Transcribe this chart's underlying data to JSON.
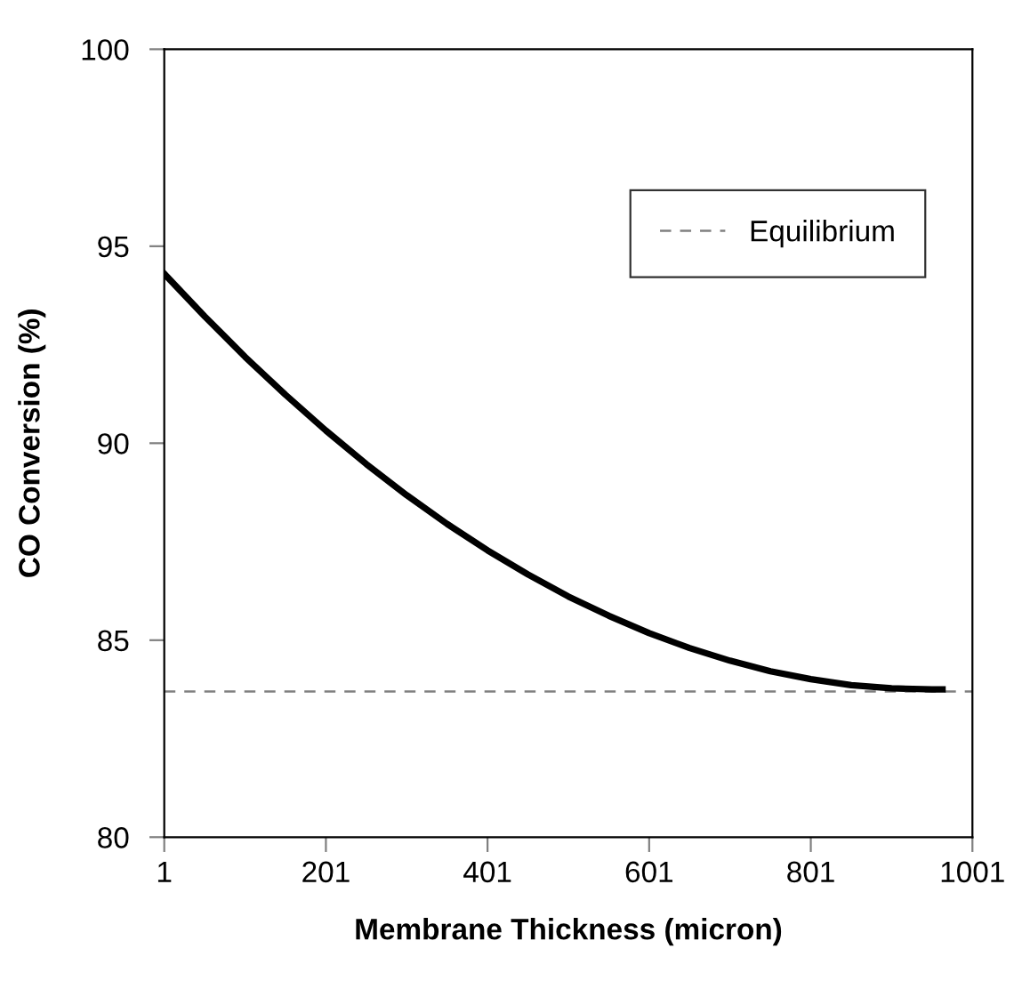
{
  "chart_data": {
    "type": "line",
    "xlabel": "Membrane Thickness (micron)",
    "ylabel": "CO Conversion (%)",
    "x": [
      1,
      51,
      101,
      151,
      201,
      251,
      301,
      351,
      401,
      451,
      501,
      551,
      601,
      651,
      701,
      751,
      801,
      851,
      901,
      951,
      964
    ],
    "series": [
      {
        "color": "#000000",
        "values": [
          94.3,
          93.22,
          92.19,
          91.23,
          90.32,
          89.47,
          88.68,
          87.95,
          87.28,
          86.67,
          86.11,
          85.62,
          85.18,
          84.8,
          84.48,
          84.21,
          84.01,
          83.86,
          83.78,
          83.75,
          83.75
        ]
      }
    ],
    "ref_lines": [
      {
        "axis": "y",
        "value": 83.7,
        "label": "Equilibrium",
        "color": "#808080",
        "line_style": "dashed"
      }
    ],
    "xlim": [
      1,
      1001
    ],
    "xticks": [
      1,
      201,
      401,
      601,
      801,
      1001
    ],
    "ylim": [
      80,
      100
    ],
    "yticks": [
      80,
      85,
      90,
      95,
      100
    ],
    "grid": false,
    "legend": "top right",
    "marker": "none",
    "line_style": "solid"
  }
}
